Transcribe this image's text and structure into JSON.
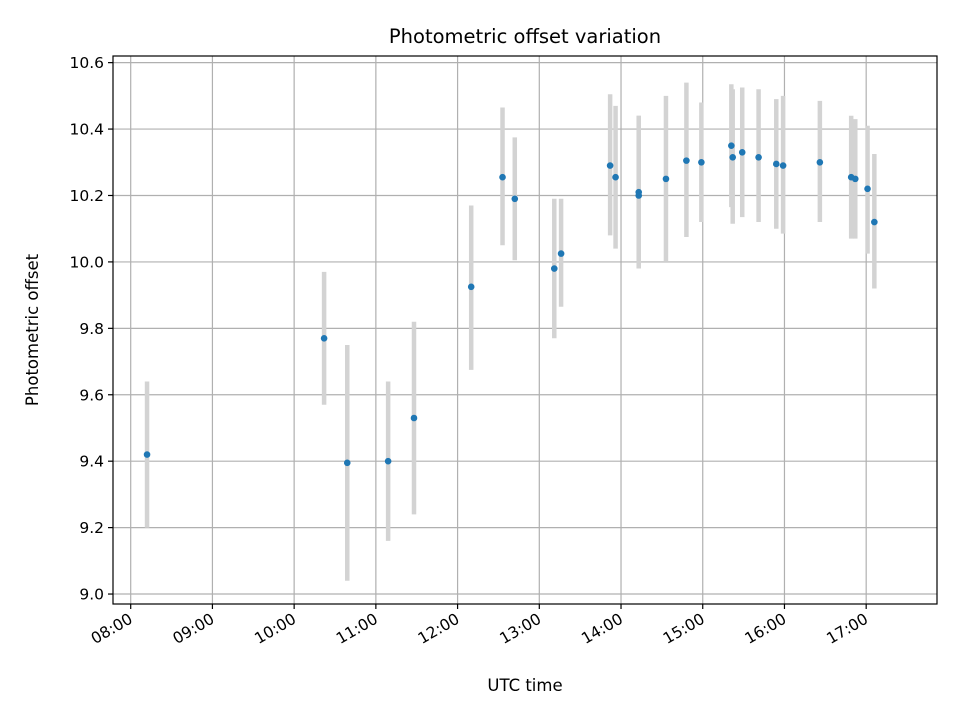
{
  "chart_data": {
    "type": "scatter",
    "title": "Photometric offset variation",
    "xlabel": "UTC time",
    "ylabel": "Photometric offset",
    "x_ticks": [
      "08:00",
      "09:00",
      "10:00",
      "11:00",
      "12:00",
      "13:00",
      "14:00",
      "15:00",
      "16:00",
      "17:00"
    ],
    "y_ticks": [
      "9.0",
      "9.2",
      "9.4",
      "9.6",
      "9.8",
      "10.0",
      "10.2",
      "10.4",
      "10.6"
    ],
    "xlim": [
      "07:47",
      "17:52"
    ],
    "ylim": [
      8.97,
      10.62
    ],
    "grid": true,
    "colors": {
      "points": "#1f77b4",
      "errorbars": "#d3d3d3",
      "grid": "#b0b0b0"
    },
    "series": [
      {
        "points": [
          {
            "x": "08:12",
            "y": 9.42,
            "ylow": 9.2,
            "yhigh": 9.64
          },
          {
            "x": "10:22",
            "y": 9.77,
            "ylow": 9.57,
            "yhigh": 9.97
          },
          {
            "x": "10:39",
            "y": 9.395,
            "ylow": 9.04,
            "yhigh": 9.75
          },
          {
            "x": "11:09",
            "y": 9.4,
            "ylow": 9.16,
            "yhigh": 9.64
          },
          {
            "x": "11:28",
            "y": 9.53,
            "ylow": 9.24,
            "yhigh": 9.82
          },
          {
            "x": "12:10",
            "y": 9.925,
            "ylow": 9.675,
            "yhigh": 10.17
          },
          {
            "x": "12:33",
            "y": 10.255,
            "ylow": 10.05,
            "yhigh": 10.465
          },
          {
            "x": "12:42",
            "y": 10.19,
            "ylow": 10.005,
            "yhigh": 10.375
          },
          {
            "x": "13:11",
            "y": 9.98,
            "ylow": 9.77,
            "yhigh": 10.19
          },
          {
            "x": "13:16",
            "y": 10.025,
            "ylow": 9.865,
            "yhigh": 10.19
          },
          {
            "x": "13:52",
            "y": 10.29,
            "ylow": 10.08,
            "yhigh": 10.505
          },
          {
            "x": "13:56",
            "y": 10.255,
            "ylow": 10.04,
            "yhigh": 10.47
          },
          {
            "x": "14:13",
            "y": 10.21,
            "ylow": 9.98,
            "yhigh": 10.44
          },
          {
            "x": "14:13",
            "y": 10.2,
            "ylow": 9.98,
            "yhigh": 10.44
          },
          {
            "x": "14:33",
            "y": 10.25,
            "ylow": 10.0,
            "yhigh": 10.5
          },
          {
            "x": "14:48",
            "y": 10.305,
            "ylow": 10.075,
            "yhigh": 10.54
          },
          {
            "x": "14:59",
            "y": 10.3,
            "ylow": 10.12,
            "yhigh": 10.48
          },
          {
            "x": "15:21",
            "y": 10.35,
            "ylow": 10.165,
            "yhigh": 10.535
          },
          {
            "x": "15:22",
            "y": 10.315,
            "ylow": 10.115,
            "yhigh": 10.52
          },
          {
            "x": "15:29",
            "y": 10.33,
            "ylow": 10.135,
            "yhigh": 10.525
          },
          {
            "x": "15:41",
            "y": 10.315,
            "ylow": 10.12,
            "yhigh": 10.52
          },
          {
            "x": "15:54",
            "y": 10.295,
            "ylow": 10.1,
            "yhigh": 10.49
          },
          {
            "x": "15:59",
            "y": 10.29,
            "ylow": 10.085,
            "yhigh": 10.5
          },
          {
            "x": "16:26",
            "y": 10.3,
            "ylow": 10.12,
            "yhigh": 10.485
          },
          {
            "x": "16:49",
            "y": 10.255,
            "ylow": 10.07,
            "yhigh": 10.44
          },
          {
            "x": "16:52",
            "y": 10.25,
            "ylow": 10.07,
            "yhigh": 10.43
          },
          {
            "x": "17:01",
            "y": 10.22,
            "ylow": 10.025,
            "yhigh": 10.41
          },
          {
            "x": "17:06",
            "y": 10.12,
            "ylow": 9.92,
            "yhigh": 10.325
          }
        ]
      }
    ]
  }
}
